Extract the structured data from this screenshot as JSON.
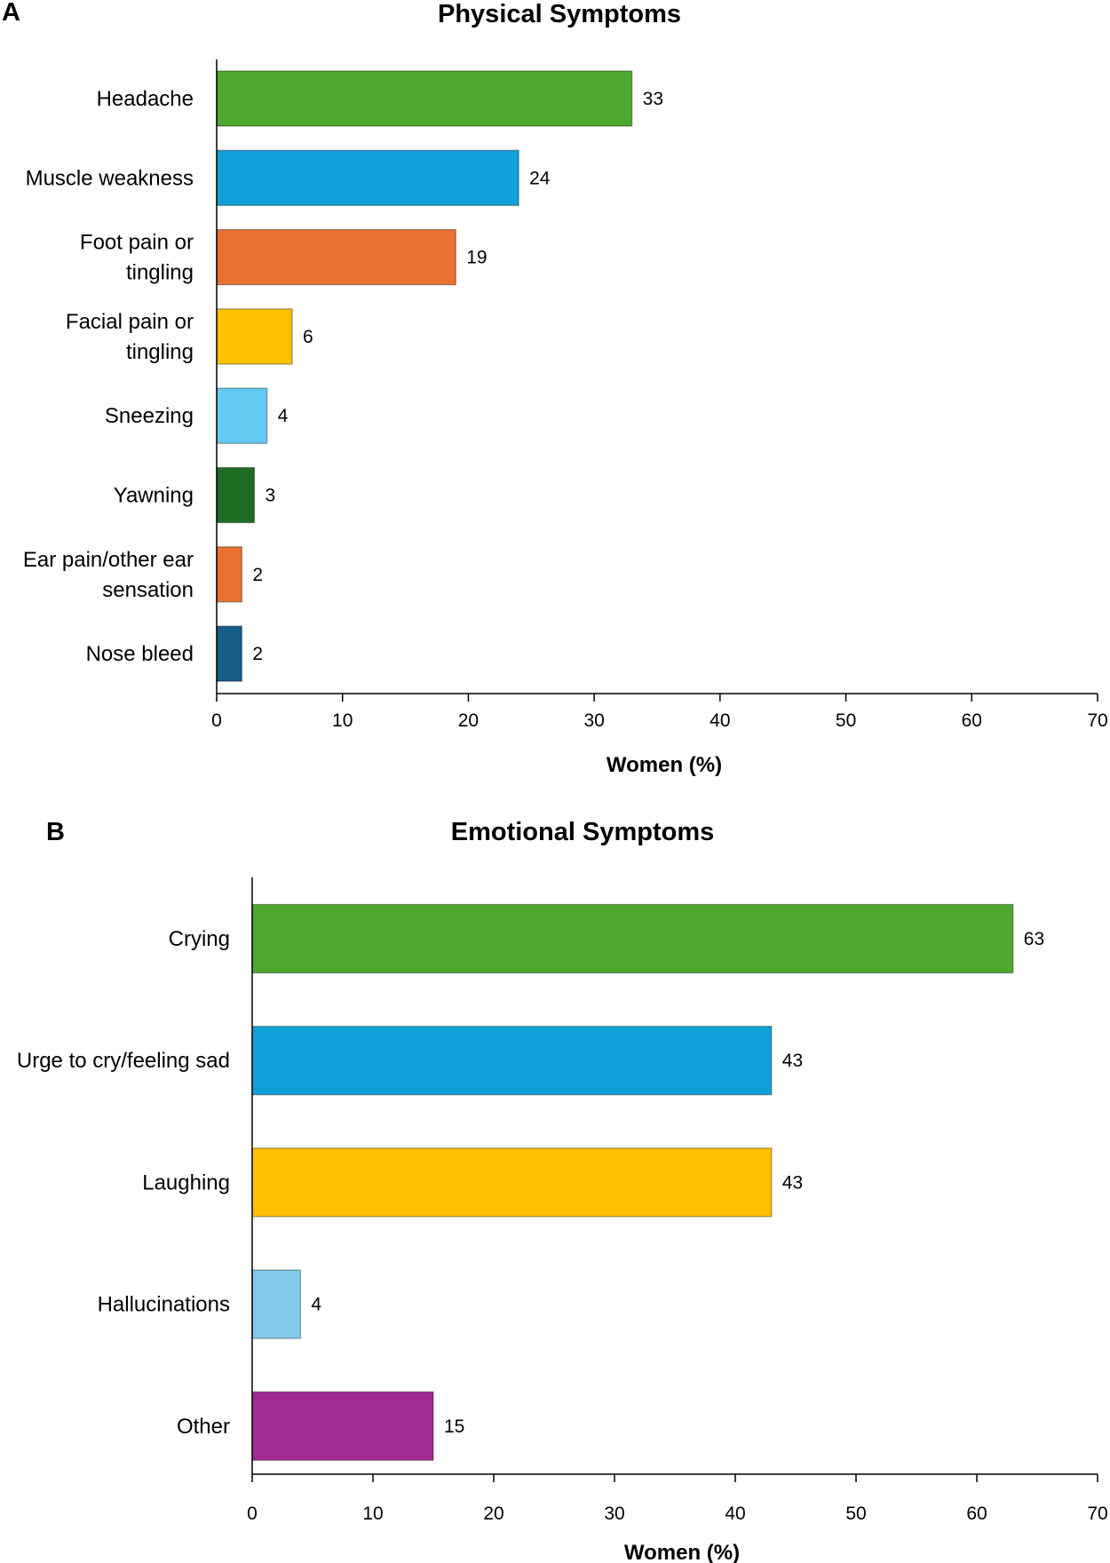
{
  "chart_data": [
    {
      "panel_label": "A",
      "type": "bar",
      "orientation": "horizontal",
      "title": "Physical Symptoms",
      "xlabel": "Women (%)",
      "ylabel": "",
      "xlim": [
        0,
        70
      ],
      "xticks": [
        "0",
        "10",
        "20",
        "30",
        "40",
        "50",
        "60",
        "70"
      ],
      "grid": false,
      "categories": [
        [
          "Headache"
        ],
        [
          "Muscle weakness"
        ],
        [
          "Foot pain or",
          "tingling"
        ],
        [
          "Facial pain or",
          "tingling"
        ],
        [
          "Sneezing"
        ],
        [
          "Yawning"
        ],
        [
          "Ear pain/other ear",
          "sensation"
        ],
        [
          "Nose bleed"
        ]
      ],
      "values": [
        33,
        24,
        19,
        6,
        4,
        3,
        2,
        2
      ],
      "value_labels": [
        "33",
        "24",
        "19",
        "6",
        "4",
        "3",
        "2",
        "2"
      ],
      "colors": [
        "#4ea72e",
        "#119fd8",
        "#e97132",
        "#ffc000",
        "#61cbf3",
        "#1e6b24",
        "#e97132",
        "#175e87"
      ]
    },
    {
      "panel_label": "B",
      "type": "bar",
      "orientation": "horizontal",
      "title": "Emotional Symptoms",
      "xlabel": "Women (%)",
      "ylabel": "",
      "xlim": [
        0,
        70
      ],
      "xticks": [
        "0",
        "10",
        "20",
        "30",
        "40",
        "50",
        "60",
        "70"
      ],
      "grid": false,
      "categories": [
        [
          "Crying"
        ],
        [
          "Urge to cry/feeling sad"
        ],
        [
          "Laughing"
        ],
        [
          "Hallucinations"
        ],
        [
          "Other"
        ]
      ],
      "values": [
        63,
        43,
        43,
        4,
        15
      ],
      "value_labels": [
        "63",
        "43",
        "43",
        "4",
        "15"
      ],
      "colors": [
        "#4ea72e",
        "#119fd8",
        "#ffc000",
        "#83cbeb",
        "#a02b93"
      ]
    }
  ]
}
